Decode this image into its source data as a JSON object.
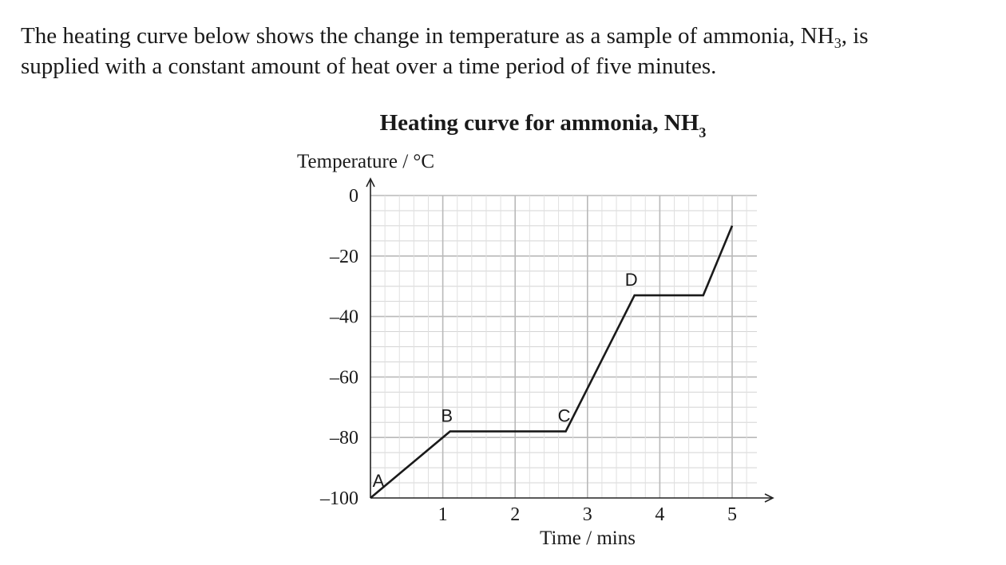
{
  "intro": {
    "line1_before": "The heating curve below shows the change in temperature as a sample of ammonia, NH",
    "line1_sub": "3",
    "line1_after": ", is",
    "line2": "supplied with a constant amount of heat over a time period of five minutes."
  },
  "chart_data": {
    "type": "line",
    "title_main": "Heating curve for ammonia, NH",
    "title_sub": "3",
    "ylabel": "Temperature / °C",
    "xlabel": "Time / mins",
    "xlim": [
      0,
      5.5
    ],
    "ylim": [
      -100,
      0
    ],
    "x_ticks": [
      1,
      2,
      3,
      4,
      5
    ],
    "x_tick_labels": [
      "1",
      "2",
      "3",
      "4",
      "5"
    ],
    "y_ticks": [
      0,
      -20,
      -40,
      -60,
      -80,
      -100
    ],
    "y_tick_labels": [
      "0",
      "–20",
      "–40",
      "–60",
      "–80",
      "–100"
    ],
    "grid": true,
    "series": [
      {
        "x": [
          0,
          1.1,
          2.7,
          3.65,
          4.6,
          5.0
        ],
        "y": [
          -100,
          -78,
          -78,
          -33,
          -33,
          -10
        ]
      }
    ],
    "annotations": [
      {
        "label": "A",
        "x": 0,
        "y": -100
      },
      {
        "label": "B",
        "x": 1.1,
        "y": -78
      },
      {
        "label": "C",
        "x": 2.7,
        "y": -78
      },
      {
        "label": "D",
        "x": 3.65,
        "y": -33
      }
    ]
  }
}
